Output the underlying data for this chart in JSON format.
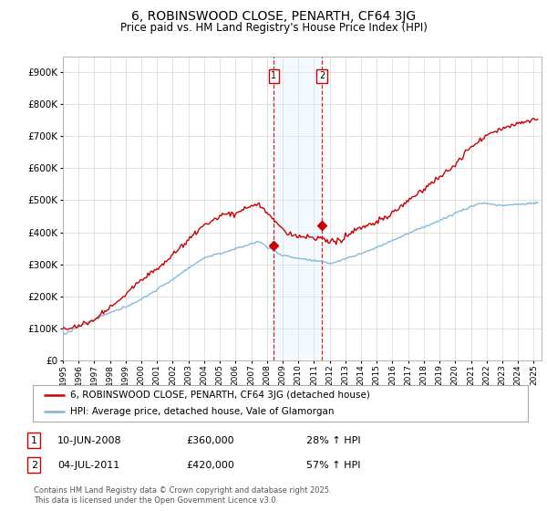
{
  "title": "6, ROBINSWOOD CLOSE, PENARTH, CF64 3JG",
  "subtitle": "Price paid vs. HM Land Registry's House Price Index (HPI)",
  "legend_line1": "6, ROBINSWOOD CLOSE, PENARTH, CF64 3JG (detached house)",
  "legend_line2": "HPI: Average price, detached house, Vale of Glamorgan",
  "annotation1_date": "10-JUN-2008",
  "annotation1_price": "£360,000",
  "annotation1_hpi": "28% ↑ HPI",
  "annotation2_date": "04-JUL-2011",
  "annotation2_price": "£420,000",
  "annotation2_hpi": "57% ↑ HPI",
  "footnote": "Contains HM Land Registry data © Crown copyright and database right 2025.\nThis data is licensed under the Open Government Licence v3.0.",
  "sale1_year": 2008.44,
  "sale1_value": 360000,
  "sale2_year": 2011.5,
  "sale2_value": 420000,
  "hpi_color": "#7ab3d4",
  "price_color": "#cc0000",
  "shading_color": "#ddeef8",
  "vline_color": "#cc0000",
  "background_color": "#ffffff",
  "grid_color": "#cccccc",
  "ylim_max": 950000,
  "xlim_start": 1995,
  "xlim_end": 2025.5
}
